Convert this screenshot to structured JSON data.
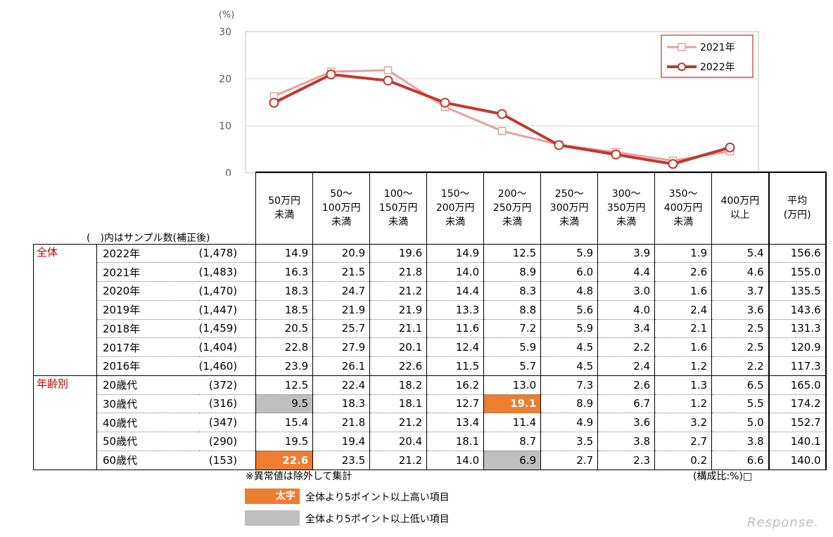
{
  "chart_data": {
    "type": "line",
    "y_unit": "(%)",
    "ylim": [
      0,
      30
    ],
    "yticks": [
      0,
      10,
      20,
      30
    ],
    "categories": [
      "50万円未満",
      "50～100万円未満",
      "100～150万円未満",
      "150～200万円未満",
      "200～250万円未満",
      "250～300万円未満",
      "300～350万円未満",
      "350～400万円未満",
      "400万円以上"
    ],
    "series": [
      {
        "name": "2021年",
        "values": [
          16.3,
          21.5,
          21.8,
          14.0,
          8.9,
          6.0,
          4.4,
          2.6,
          4.6
        ],
        "color": "#e8a0a0",
        "marker": "square"
      },
      {
        "name": "2022年",
        "values": [
          14.9,
          20.9,
          19.6,
          14.9,
          12.5,
          5.9,
          3.9,
          1.9,
          5.4
        ],
        "color": "#c0392b",
        "marker": "circle"
      }
    ],
    "legend_position": "top-right",
    "grid": true
  },
  "table": {
    "sample_note": "(　)内はサンプル数(補正後)",
    "headers": [
      [
        "50万円",
        "未満"
      ],
      [
        "50～",
        "100万円",
        "未満"
      ],
      [
        "100～",
        "150万円",
        "未満"
      ],
      [
        "150～",
        "200万円",
        "未満"
      ],
      [
        "200～",
        "250万円",
        "未満"
      ],
      [
        "250～",
        "300万円",
        "未満"
      ],
      [
        "300～",
        "350万円",
        "未満"
      ],
      [
        "350～",
        "400万円",
        "未満"
      ],
      [
        "400万円",
        "以上"
      ],
      [
        "平均",
        "(万円)"
      ]
    ],
    "groups": [
      {
        "name": "全体",
        "rows": [
          {
            "label": "2022年",
            "n": "(1,478)",
            "values": [
              "14.9",
              "20.9",
              "19.6",
              "14.9",
              "12.5",
              "5.9",
              "3.9",
              "1.9",
              "5.4",
              "156.6"
            ],
            "marks": [
              "",
              "",
              "",
              "",
              "",
              "",
              "",
              "",
              "",
              ""
            ]
          },
          {
            "label": "2021年",
            "n": "(1,483)",
            "values": [
              "16.3",
              "21.5",
              "21.8",
              "14.0",
              "8.9",
              "6.0",
              "4.4",
              "2.6",
              "4.6",
              "155.0"
            ],
            "marks": [
              "",
              "",
              "",
              "",
              "",
              "",
              "",
              "",
              "",
              ""
            ]
          },
          {
            "label": "2020年",
            "n": "(1,470)",
            "values": [
              "18.3",
              "24.7",
              "21.2",
              "14.4",
              "8.3",
              "4.8",
              "3.0",
              "1.6",
              "3.7",
              "135.5"
            ],
            "marks": [
              "",
              "",
              "",
              "",
              "",
              "",
              "",
              "",
              "",
              ""
            ]
          },
          {
            "label": "2019年",
            "n": "(1,447)",
            "values": [
              "18.5",
              "21.9",
              "21.9",
              "13.3",
              "8.8",
              "5.6",
              "4.0",
              "2.4",
              "3.6",
              "143.6"
            ],
            "marks": [
              "",
              "",
              "",
              "",
              "",
              "",
              "",
              "",
              "",
              ""
            ]
          },
          {
            "label": "2018年",
            "n": "(1,459)",
            "values": [
              "20.5",
              "25.7",
              "21.1",
              "11.6",
              "7.2",
              "5.9",
              "3.4",
              "2.1",
              "2.5",
              "131.3"
            ],
            "marks": [
              "",
              "",
              "",
              "",
              "",
              "",
              "",
              "",
              "",
              ""
            ]
          },
          {
            "label": "2017年",
            "n": "(1,404)",
            "values": [
              "22.8",
              "27.9",
              "20.1",
              "12.4",
              "5.9",
              "4.5",
              "2.2",
              "1.6",
              "2.5",
              "120.9"
            ],
            "marks": [
              "",
              "",
              "",
              "",
              "",
              "",
              "",
              "",
              "",
              ""
            ]
          },
          {
            "label": "2016年",
            "n": "(1,460)",
            "values": [
              "23.9",
              "26.1",
              "22.6",
              "11.5",
              "5.7",
              "4.5",
              "2.4",
              "1.2",
              "2.2",
              "117.3"
            ],
            "marks": [
              "",
              "",
              "",
              "",
              "",
              "",
              "",
              "",
              "",
              ""
            ]
          }
        ]
      },
      {
        "name": "年齢別",
        "rows": [
          {
            "label": "20歳代",
            "n": "(372)",
            "values": [
              "12.5",
              "22.4",
              "18.2",
              "16.2",
              "13.0",
              "7.3",
              "2.6",
              "1.3",
              "6.5",
              "165.0"
            ],
            "marks": [
              "",
              "",
              "",
              "",
              "",
              "",
              "",
              "",
              "",
              ""
            ]
          },
          {
            "label": "30歳代",
            "n": "(316)",
            "values": [
              "9.5",
              "18.3",
              "18.1",
              "12.7",
              "19.1",
              "8.9",
              "6.7",
              "1.2",
              "5.5",
              "174.2"
            ],
            "marks": [
              "lo",
              "",
              "",
              "",
              "hi",
              "",
              "",
              "",
              "",
              ""
            ]
          },
          {
            "label": "40歳代",
            "n": "(347)",
            "values": [
              "15.4",
              "21.8",
              "21.2",
              "13.4",
              "11.4",
              "4.9",
              "3.6",
              "3.2",
              "5.0",
              "152.7"
            ],
            "marks": [
              "",
              "",
              "",
              "",
              "",
              "",
              "",
              "",
              "",
              ""
            ]
          },
          {
            "label": "50歳代",
            "n": "(290)",
            "values": [
              "19.5",
              "19.4",
              "20.4",
              "18.1",
              "8.7",
              "3.5",
              "3.8",
              "2.7",
              "3.8",
              "140.1"
            ],
            "marks": [
              "",
              "",
              "",
              "",
              "",
              "",
              "",
              "",
              "",
              ""
            ]
          },
          {
            "label": "60歳代",
            "n": "(153)",
            "values": [
              "22.6",
              "23.5",
              "21.2",
              "14.0",
              "6.9",
              "2.7",
              "2.3",
              "0.2",
              "6.6",
              "140.0"
            ],
            "marks": [
              "hi",
              "",
              "",
              "",
              "lo",
              "",
              "",
              "",
              "",
              ""
            ]
          }
        ]
      }
    ]
  },
  "notes": {
    "exclusion": "※異常値は除外して集計",
    "unit": "(構成比:%)□",
    "legend_high_swatch": "太字",
    "legend_high": "全体より5ポイント以上高い項目",
    "legend_low": "全体より5ポイント以上低い項目",
    "watermark": "Response."
  }
}
